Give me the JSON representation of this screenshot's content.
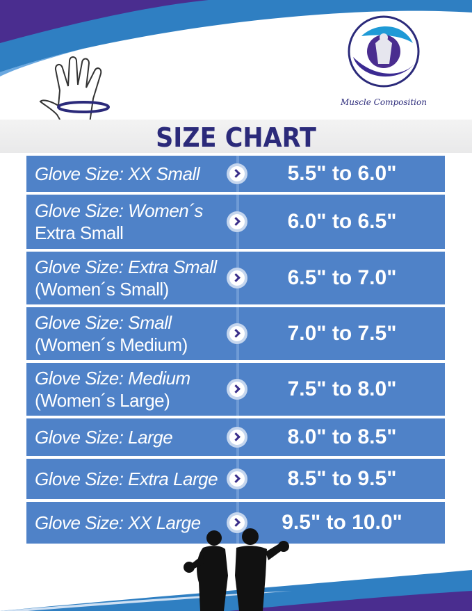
{
  "brand": {
    "name": "Muscle Composition"
  },
  "title": "SIZE CHART",
  "colors": {
    "navy": "#2b2a7a",
    "row_blue": "#4f82c8",
    "swoosh_blue": "#2f7fc2",
    "swoosh_purple": "#4a2d8f"
  },
  "rows": [
    {
      "line1": "Glove Size:  XX Small",
      "line2": "",
      "range": "5.5\" to 6.0\""
    },
    {
      "line1": "Glove Size: Women´s",
      "line2": "Extra Small",
      "range": "6.0\" to 6.5\""
    },
    {
      "line1": "Glove Size: Extra Small",
      "line2": "(Women´s Small)",
      "range": "6.5\" to 7.0\""
    },
    {
      "line1": "Glove Size: Small",
      "line2": "(Women´s Medium)",
      "range": "7.0\" to 7.5\""
    },
    {
      "line1": "Glove Size: Medium",
      "line2": "(Women´s Large)",
      "range": "7.5\" to 8.0\""
    },
    {
      "line1": "Glove Size: Large",
      "line2": "",
      "range": "8.0\" to 8.5\""
    },
    {
      "line1": "Glove Size: Extra Large",
      "line2": "",
      "range": "8.5\" to 9.5\""
    },
    {
      "line1": "Glove Size: XX Large",
      "line2": "",
      "range": "9.5\" to 10.0\""
    }
  ]
}
